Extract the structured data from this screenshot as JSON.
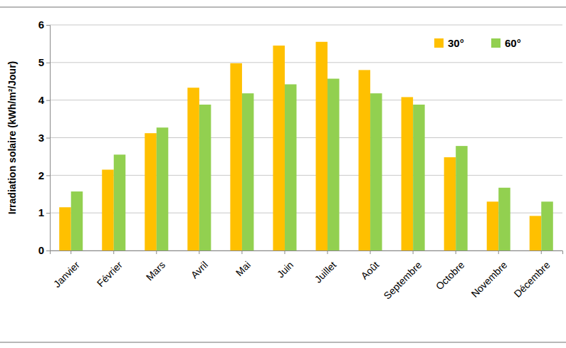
{
  "chart_data": {
    "type": "bar",
    "y_label": "Irradiation solaire (kWh/m²/Jour)",
    "categories": [
      "Janvier",
      "Février",
      "Mars",
      "Avril",
      "Mai",
      "Juin",
      "Juillet",
      "Août",
      "Septembre",
      "Octobre",
      "Novembre",
      "Décembre"
    ],
    "series": [
      {
        "name": "30°",
        "color": "#ffc000",
        "values": [
          1.15,
          2.15,
          3.12,
          4.33,
          4.98,
          5.45,
          5.55,
          4.8,
          4.08,
          2.48,
          1.3,
          0.92
        ]
      },
      {
        "name": "60°",
        "color": "#92d050",
        "values": [
          1.57,
          2.55,
          3.27,
          3.88,
          4.18,
          4.42,
          4.57,
          4.18,
          3.88,
          2.78,
          1.67,
          1.3
        ]
      }
    ],
    "ylim": [
      0,
      6
    ],
    "yticks": [
      0,
      1,
      2,
      3,
      4,
      5,
      6
    ],
    "grid": true,
    "legend": "upper right"
  }
}
